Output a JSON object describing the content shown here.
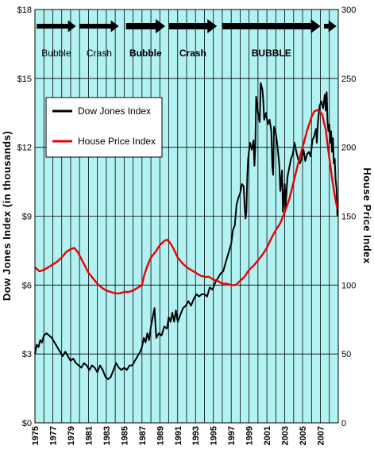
{
  "chart_data": {
    "type": "line",
    "xlabel": "",
    "ylabel": "Dow Jones Index (in thousands)",
    "y2label": "House Price Index",
    "xlim": [
      1975,
      2009
    ],
    "ylim": [
      0,
      18
    ],
    "y2lim": [
      0,
      300
    ],
    "y_ticks": [
      "$0",
      "$3",
      "$6",
      "$9",
      "$12",
      "$15",
      "$18"
    ],
    "y2_ticks": [
      "0",
      "50",
      "100",
      "150",
      "200",
      "250",
      "300"
    ],
    "x_ticks": [
      "1975",
      "1977",
      "1979",
      "1981",
      "1983",
      "1985",
      "1987",
      "1989",
      "1991",
      "1993",
      "1995",
      "1997",
      "1999",
      "2001",
      "2003",
      "2005",
      "2007"
    ],
    "grid": true,
    "plot_background": "#b3f2f2",
    "legend": {
      "position": "upper-left",
      "entries": [
        {
          "label": "Dow Jones Index",
          "color": "#000000"
        },
        {
          "label": "House Price Index",
          "color": "#ee0000"
        }
      ]
    },
    "phases": [
      {
        "label": "Bubble",
        "start": 1975.2,
        "end": 1979.6,
        "bold": false
      },
      {
        "label": "Crash",
        "start": 1980.0,
        "end": 1984.4,
        "bold": false
      },
      {
        "label": "Bubble",
        "start": 1985.2,
        "end": 1989.6,
        "bold": true
      },
      {
        "label": "Crash",
        "start": 1990.0,
        "end": 1995.4,
        "bold": true
      },
      {
        "label": "BUBBLE",
        "start": 1996.0,
        "end": 2007.0,
        "bold": true
      },
      {
        "label": "",
        "start": 2007.4,
        "end": 2008.8,
        "bold": false
      }
    ],
    "series": [
      {
        "name": "Dow Jones Index",
        "color": "#000000",
        "axis": "left",
        "points": [
          [
            1975.0,
            3.0
          ],
          [
            1975.2,
            3.4
          ],
          [
            1975.4,
            3.3
          ],
          [
            1975.6,
            3.6
          ],
          [
            1975.8,
            3.5
          ],
          [
            1976.0,
            3.8
          ],
          [
            1976.3,
            3.9
          ],
          [
            1976.6,
            3.8
          ],
          [
            1976.9,
            3.7
          ],
          [
            1977.2,
            3.5
          ],
          [
            1977.5,
            3.3
          ],
          [
            1977.8,
            3.1
          ],
          [
            1978.1,
            2.9
          ],
          [
            1978.4,
            3.1
          ],
          [
            1978.7,
            2.9
          ],
          [
            1979.0,
            2.7
          ],
          [
            1979.3,
            2.8
          ],
          [
            1979.6,
            2.6
          ],
          [
            1979.9,
            2.5
          ],
          [
            1980.2,
            2.4
          ],
          [
            1980.5,
            2.6
          ],
          [
            1980.8,
            2.5
          ],
          [
            1981.1,
            2.3
          ],
          [
            1981.4,
            2.5
          ],
          [
            1981.7,
            2.4
          ],
          [
            1982.0,
            2.2
          ],
          [
            1982.3,
            2.5
          ],
          [
            1982.6,
            2.3
          ],
          [
            1982.9,
            2.0
          ],
          [
            1983.2,
            1.9
          ],
          [
            1983.5,
            2.0
          ],
          [
            1983.8,
            2.3
          ],
          [
            1984.1,
            2.6
          ],
          [
            1984.4,
            2.4
          ],
          [
            1984.7,
            2.3
          ],
          [
            1985.0,
            2.4
          ],
          [
            1985.3,
            2.3
          ],
          [
            1985.6,
            2.5
          ],
          [
            1985.9,
            2.5
          ],
          [
            1986.2,
            2.7
          ],
          [
            1986.5,
            2.9
          ],
          [
            1986.8,
            3.1
          ],
          [
            1987.0,
            3.3
          ],
          [
            1987.2,
            3.7
          ],
          [
            1987.4,
            3.5
          ],
          [
            1987.6,
            3.9
          ],
          [
            1987.8,
            3.6
          ],
          [
            1988.0,
            4.2
          ],
          [
            1988.2,
            4.6
          ],
          [
            1988.4,
            5.0
          ],
          [
            1988.5,
            4.3
          ],
          [
            1988.6,
            3.7
          ],
          [
            1988.9,
            3.9
          ],
          [
            1989.2,
            3.8
          ],
          [
            1989.5,
            4.2
          ],
          [
            1989.8,
            4.1
          ],
          [
            1990.0,
            4.6
          ],
          [
            1990.2,
            4.4
          ],
          [
            1990.4,
            4.8
          ],
          [
            1990.6,
            4.4
          ],
          [
            1990.8,
            4.9
          ],
          [
            1991.0,
            4.4
          ],
          [
            1991.3,
            4.7
          ],
          [
            1991.6,
            5.0
          ],
          [
            1991.9,
            5.1
          ],
          [
            1992.2,
            5.3
          ],
          [
            1992.5,
            5.1
          ],
          [
            1992.8,
            5.4
          ],
          [
            1993.1,
            5.6
          ],
          [
            1993.4,
            5.5
          ],
          [
            1993.7,
            5.6
          ],
          [
            1994.0,
            5.6
          ],
          [
            1994.3,
            5.5
          ],
          [
            1994.6,
            5.9
          ],
          [
            1994.9,
            5.8
          ],
          [
            1995.2,
            6.1
          ],
          [
            1995.5,
            6.3
          ],
          [
            1995.8,
            6.5
          ],
          [
            1996.1,
            6.6
          ],
          [
            1996.4,
            7.0
          ],
          [
            1996.7,
            7.4
          ],
          [
            1997.0,
            7.8
          ],
          [
            1997.2,
            8.4
          ],
          [
            1997.4,
            8.6
          ],
          [
            1997.6,
            9.5
          ],
          [
            1997.8,
            9.8
          ],
          [
            1998.0,
            10.0
          ],
          [
            1998.2,
            10.4
          ],
          [
            1998.4,
            10.3
          ],
          [
            1998.5,
            9.5
          ],
          [
            1998.6,
            8.9
          ],
          [
            1998.7,
            9.2
          ],
          [
            1998.8,
            10.7
          ],
          [
            1998.9,
            11.5
          ],
          [
            1999.1,
            12.2
          ],
          [
            1999.3,
            11.9
          ],
          [
            1999.5,
            12.3
          ],
          [
            1999.6,
            11.2
          ],
          [
            1999.7,
            12.0
          ],
          [
            1999.8,
            14.2
          ],
          [
            2000.0,
            13.5
          ],
          [
            2000.2,
            13.1
          ],
          [
            2000.3,
            14.8
          ],
          [
            2000.5,
            14.5
          ],
          [
            2000.6,
            14.0
          ],
          [
            2000.7,
            13.2
          ],
          [
            2000.9,
            13.5
          ],
          [
            2001.1,
            13.0
          ],
          [
            2001.3,
            13.2
          ],
          [
            2001.5,
            12.7
          ],
          [
            2001.6,
            11.2
          ],
          [
            2001.7,
            10.8
          ],
          [
            2001.8,
            12.9
          ],
          [
            2002.0,
            12.6
          ],
          [
            2002.2,
            12.0
          ],
          [
            2002.4,
            11.2
          ],
          [
            2002.5,
            10.1
          ],
          [
            2002.7,
            11.0
          ],
          [
            2002.8,
            9.2
          ],
          [
            2002.9,
            9.8
          ],
          [
            2003.0,
            10.4
          ],
          [
            2003.1,
            9.4
          ],
          [
            2003.3,
            10.7
          ],
          [
            2003.5,
            11.1
          ],
          [
            2003.7,
            11.5
          ],
          [
            2003.9,
            11.7
          ],
          [
            2004.1,
            12.2
          ],
          [
            2004.3,
            11.8
          ],
          [
            2004.5,
            11.5
          ],
          [
            2004.7,
            11.3
          ],
          [
            2004.9,
            11.5
          ],
          [
            2005.1,
            11.9
          ],
          [
            2005.3,
            11.4
          ],
          [
            2005.5,
            11.7
          ],
          [
            2005.7,
            11.8
          ],
          [
            2005.9,
            11.6
          ],
          [
            2006.1,
            12.3
          ],
          [
            2006.3,
            12.5
          ],
          [
            2006.5,
            12.8
          ],
          [
            2006.6,
            12.2
          ],
          [
            2006.7,
            13.0
          ],
          [
            2006.9,
            13.8
          ],
          [
            2007.1,
            14.0
          ],
          [
            2007.3,
            13.7
          ],
          [
            2007.5,
            14.3
          ],
          [
            2007.6,
            13.6
          ],
          [
            2007.7,
            14.4
          ],
          [
            2007.8,
            13.1
          ],
          [
            2007.9,
            12.7
          ],
          [
            2008.0,
            13.0
          ],
          [
            2008.1,
            12.2
          ],
          [
            2008.2,
            12.7
          ],
          [
            2008.3,
            11.8
          ],
          [
            2008.4,
            12.4
          ],
          [
            2008.5,
            11.3
          ],
          [
            2008.6,
            11.5
          ],
          [
            2008.7,
            10.6
          ],
          [
            2008.8,
            10.2
          ],
          [
            2008.9,
            9.0
          ]
        ]
      },
      {
        "name": "House Price Index",
        "color": "#ee0000",
        "axis": "right",
        "points": [
          [
            1975.0,
            113
          ],
          [
            1975.5,
            110
          ],
          [
            1976.0,
            111
          ],
          [
            1976.5,
            113
          ],
          [
            1977.0,
            115
          ],
          [
            1977.5,
            117
          ],
          [
            1978.0,
            120
          ],
          [
            1978.5,
            124
          ],
          [
            1979.0,
            126
          ],
          [
            1979.4,
            127
          ],
          [
            1979.8,
            124
          ],
          [
            1980.2,
            119
          ],
          [
            1980.6,
            114
          ],
          [
            1981.0,
            109
          ],
          [
            1981.5,
            105
          ],
          [
            1982.0,
            101
          ],
          [
            1982.5,
            98
          ],
          [
            1983.0,
            96
          ],
          [
            1983.5,
            95
          ],
          [
            1984.0,
            94
          ],
          [
            1984.5,
            94
          ],
          [
            1985.0,
            95
          ],
          [
            1985.5,
            95
          ],
          [
            1986.0,
            96
          ],
          [
            1986.5,
            98
          ],
          [
            1987.0,
            100
          ],
          [
            1987.2,
            106
          ],
          [
            1987.6,
            114
          ],
          [
            1988.0,
            120
          ],
          [
            1988.5,
            124
          ],
          [
            1989.0,
            129
          ],
          [
            1989.5,
            132
          ],
          [
            1989.8,
            133
          ],
          [
            1990.1,
            131
          ],
          [
            1990.5,
            127
          ],
          [
            1991.0,
            120
          ],
          [
            1991.5,
            116
          ],
          [
            1992.0,
            113
          ],
          [
            1992.5,
            111
          ],
          [
            1993.0,
            109
          ],
          [
            1993.5,
            107
          ],
          [
            1994.0,
            106
          ],
          [
            1994.5,
            106
          ],
          [
            1995.0,
            104
          ],
          [
            1995.5,
            103
          ],
          [
            1996.0,
            101
          ],
          [
            1996.5,
            101
          ],
          [
            1997.0,
            100
          ],
          [
            1997.5,
            100
          ],
          [
            1998.0,
            103
          ],
          [
            1998.5,
            106
          ],
          [
            1999.0,
            111
          ],
          [
            1999.5,
            114
          ],
          [
            2000.0,
            118
          ],
          [
            2000.5,
            122
          ],
          [
            2001.0,
            127
          ],
          [
            2001.5,
            134
          ],
          [
            2002.0,
            140
          ],
          [
            2002.5,
            145
          ],
          [
            2003.0,
            153
          ],
          [
            2003.5,
            162
          ],
          [
            2004.0,
            175
          ],
          [
            2004.5,
            188
          ],
          [
            2005.0,
            200
          ],
          [
            2005.5,
            212
          ],
          [
            2006.0,
            222
          ],
          [
            2006.3,
            226
          ],
          [
            2006.6,
            227
          ],
          [
            2006.9,
            226
          ],
          [
            2007.2,
            224
          ],
          [
            2007.4,
            218
          ],
          [
            2007.6,
            213
          ],
          [
            2007.8,
            202
          ],
          [
            2008.0,
            192
          ],
          [
            2008.3,
            178
          ],
          [
            2008.6,
            165
          ],
          [
            2008.9,
            155
          ]
        ]
      }
    ]
  }
}
